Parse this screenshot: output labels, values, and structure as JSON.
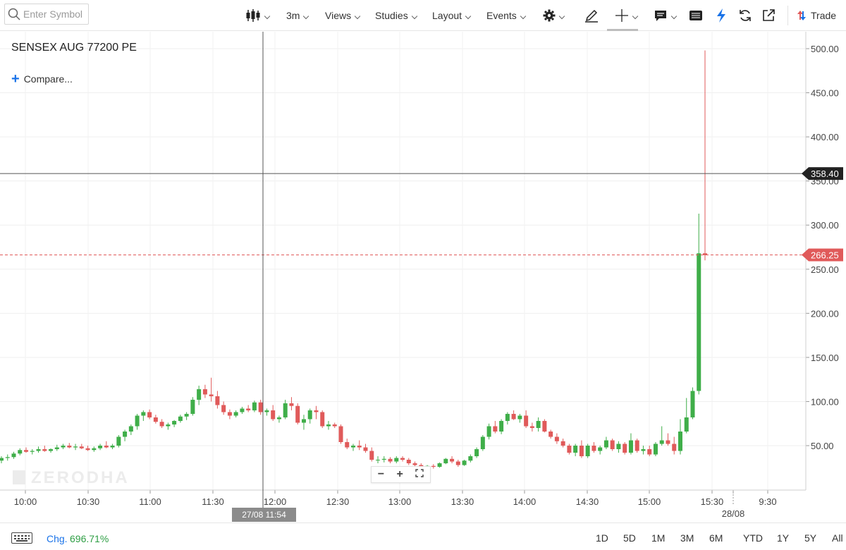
{
  "toolbar": {
    "search_placeholder": "Enter Symbol",
    "interval": "3m",
    "views": "Views",
    "studies": "Studies",
    "layout": "Layout",
    "events": "Events",
    "trade": "Trade"
  },
  "symbol": {
    "name": "SENSEX AUG 77200 PE",
    "compare": "Compare..."
  },
  "watermark": "ZERODHA",
  "crosshair": {
    "price_label": "358.40",
    "date_label": "27/08 11:54"
  },
  "last_price": {
    "label": "266.25",
    "color": "#e05a5a"
  },
  "colors": {
    "up": "#3fae49",
    "down": "#e05a5a",
    "accent": "#1a73e8"
  },
  "footer": {
    "chg_label": "Chg.",
    "chg_value": "696.71%",
    "ranges": [
      "1D",
      "5D",
      "1M",
      "3M",
      "6M",
      "YTD",
      "1Y",
      "5Y",
      "All"
    ]
  },
  "chart_data": {
    "type": "candlestick",
    "y_ticks": [
      "500.00",
      "450.00",
      "400.00",
      "350.00",
      "300.00",
      "250.00",
      "200.00",
      "150.00",
      "100.00",
      "50.00"
    ],
    "ylim": [
      0,
      510
    ],
    "x_ticks": [
      "10:00",
      "10:30",
      "11:00",
      "11:30",
      "12:00",
      "12:30",
      "13:00",
      "13:30",
      "14:00",
      "14:30",
      "15:00",
      "15:30",
      "28/08",
      "9:30"
    ],
    "candles": [
      [
        33,
        38,
        30,
        36
      ],
      [
        36,
        40,
        33,
        37
      ],
      [
        37,
        43,
        35,
        41
      ],
      [
        41,
        47,
        39,
        45
      ],
      [
        45,
        48,
        42,
        43
      ],
      [
        43,
        46,
        40,
        44
      ],
      [
        44,
        49,
        42,
        46
      ],
      [
        46,
        50,
        43,
        44
      ],
      [
        44,
        47,
        42,
        46
      ],
      [
        46,
        51,
        44,
        48
      ],
      [
        48,
        52,
        46,
        50
      ],
      [
        50,
        53,
        47,
        48
      ],
      [
        48,
        52,
        45,
        49
      ],
      [
        49,
        52,
        46,
        47
      ],
      [
        47,
        50,
        44,
        45
      ],
      [
        45,
        49,
        43,
        47
      ],
      [
        47,
        52,
        45,
        50
      ],
      [
        50,
        55,
        47,
        48
      ],
      [
        48,
        52,
        46,
        50
      ],
      [
        50,
        62,
        48,
        60
      ],
      [
        60,
        68,
        55,
        66
      ],
      [
        66,
        74,
        62,
        72
      ],
      [
        72,
        86,
        68,
        84
      ],
      [
        84,
        90,
        78,
        88
      ],
      [
        88,
        91,
        80,
        82
      ],
      [
        82,
        85,
        75,
        77
      ],
      [
        77,
        80,
        70,
        72
      ],
      [
        72,
        76,
        68,
        74
      ],
      [
        74,
        79,
        71,
        78
      ],
      [
        78,
        85,
        76,
        83
      ],
      [
        83,
        88,
        79,
        86
      ],
      [
        86,
        105,
        84,
        102
      ],
      [
        102,
        118,
        96,
        114
      ],
      [
        114,
        119,
        104,
        108
      ],
      [
        108,
        127,
        100,
        106
      ],
      [
        106,
        112,
        92,
        96
      ],
      [
        96,
        100,
        85,
        88
      ],
      [
        88,
        91,
        80,
        84
      ],
      [
        84,
        90,
        82,
        88
      ],
      [
        88,
        94,
        86,
        92
      ],
      [
        92,
        96,
        88,
        90
      ],
      [
        90,
        101,
        88,
        99
      ],
      [
        99,
        102,
        85,
        88
      ],
      [
        88,
        92,
        84,
        90
      ],
      [
        90,
        96,
        78,
        80
      ],
      [
        80,
        84,
        76,
        82
      ],
      [
        82,
        102,
        80,
        98
      ],
      [
        98,
        105,
        90,
        95
      ],
      [
        95,
        98,
        74,
        76
      ],
      [
        76,
        85,
        68,
        80
      ],
      [
        80,
        92,
        75,
        90
      ],
      [
        90,
        95,
        80,
        88
      ],
      [
        88,
        90,
        70,
        72
      ],
      [
        72,
        78,
        68,
        74
      ],
      [
        74,
        76,
        70,
        72
      ],
      [
        72,
        74,
        52,
        54
      ],
      [
        54,
        58,
        46,
        48
      ],
      [
        48,
        52,
        44,
        50
      ],
      [
        50,
        56,
        45,
        48
      ],
      [
        48,
        52,
        42,
        44
      ],
      [
        44,
        48,
        32,
        34
      ],
      [
        34,
        38,
        30,
        34
      ],
      [
        34,
        38,
        31,
        35
      ],
      [
        35,
        37,
        30,
        32
      ],
      [
        32,
        38,
        30,
        36
      ],
      [
        36,
        38,
        32,
        34
      ],
      [
        34,
        36,
        28,
        30
      ],
      [
        30,
        32,
        26,
        28
      ],
      [
        28,
        30,
        24,
        25
      ],
      [
        25,
        28,
        23,
        27
      ],
      [
        27,
        29,
        24,
        26
      ],
      [
        26,
        31,
        25,
        30
      ],
      [
        30,
        36,
        29,
        35
      ],
      [
        35,
        38,
        30,
        32
      ],
      [
        32,
        34,
        26,
        28
      ],
      [
        28,
        34,
        27,
        33
      ],
      [
        33,
        40,
        31,
        38
      ],
      [
        38,
        48,
        36,
        46
      ],
      [
        46,
        62,
        44,
        60
      ],
      [
        60,
        75,
        57,
        72
      ],
      [
        72,
        78,
        64,
        66
      ],
      [
        66,
        80,
        63,
        78
      ],
      [
        78,
        88,
        74,
        86
      ],
      [
        86,
        90,
        79,
        80
      ],
      [
        80,
        86,
        76,
        84
      ],
      [
        84,
        90,
        70,
        72
      ],
      [
        72,
        76,
        66,
        70
      ],
      [
        70,
        82,
        66,
        78
      ],
      [
        78,
        80,
        65,
        66
      ],
      [
        66,
        68,
        58,
        60
      ],
      [
        60,
        64,
        52,
        55
      ],
      [
        55,
        58,
        48,
        50
      ],
      [
        50,
        52,
        40,
        42
      ],
      [
        42,
        52,
        38,
        50
      ],
      [
        50,
        56,
        36,
        38
      ],
      [
        38,
        52,
        36,
        50
      ],
      [
        50,
        54,
        42,
        44
      ],
      [
        44,
        50,
        40,
        48
      ],
      [
        48,
        60,
        46,
        56
      ],
      [
        56,
        58,
        44,
        46
      ],
      [
        46,
        55,
        42,
        52
      ],
      [
        52,
        54,
        40,
        42
      ],
      [
        42,
        64,
        40,
        56
      ],
      [
        56,
        58,
        42,
        44
      ],
      [
        44,
        50,
        40,
        46
      ],
      [
        46,
        50,
        38,
        40
      ],
      [
        40,
        54,
        38,
        52
      ],
      [
        52,
        72,
        50,
        56
      ],
      [
        56,
        64,
        50,
        52
      ],
      [
        52,
        60,
        40,
        44
      ],
      [
        44,
        80,
        40,
        66
      ],
      [
        66,
        104,
        64,
        82
      ],
      [
        82,
        116,
        80,
        112
      ],
      [
        112,
        313,
        108,
        268
      ],
      [
        268,
        498,
        260,
        266
      ]
    ]
  }
}
